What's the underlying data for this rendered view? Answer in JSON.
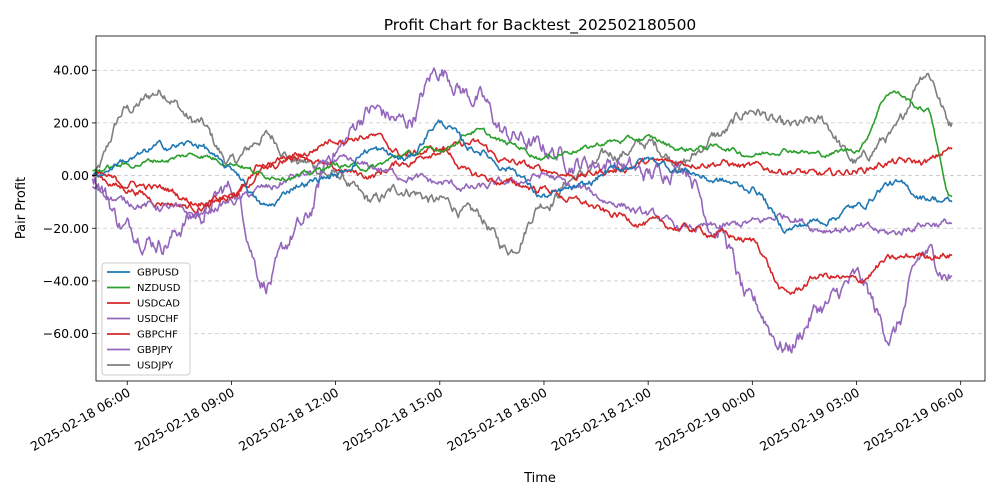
{
  "chart_data": {
    "type": "line",
    "title": "Profit Chart for Backtest_202502180500",
    "xlabel": "Time",
    "ylabel": "Pair Profit",
    "ylim": [
      -78,
      53
    ],
    "yticks": [
      -60,
      -40,
      -20,
      0,
      20,
      40
    ],
    "ytick_labels": [
      "−60.00",
      "−40.00",
      "−20.00",
      "0.00",
      "20.00",
      "40.00"
    ],
    "xlim": [
      "2025-02-18 05:06",
      "2025-02-19 06:42"
    ],
    "xtick_labels": [
      "2025-02-18 06:00",
      "2025-02-18 09:00",
      "2025-02-18 12:00",
      "2025-02-18 15:00",
      "2025-02-18 18:00",
      "2025-02-18 21:00",
      "2025-02-19 00:00",
      "2025-02-19 03:00",
      "2025-02-19 06:00"
    ],
    "x_data_hours": [
      0,
      1,
      2,
      3,
      4,
      5,
      6,
      7,
      8,
      9,
      10,
      11,
      12,
      13,
      14,
      15,
      16,
      17,
      18,
      19,
      20,
      21,
      22,
      23,
      24,
      25,
      26,
      27,
      28
    ],
    "x_data_labels": [
      "2025-02-18 05:00",
      "2025-02-18 06:00",
      "2025-02-18 07:00",
      "2025-02-18 08:00",
      "2025-02-18 09:00",
      "2025-02-18 10:00",
      "2025-02-18 11:00",
      "2025-02-18 12:00",
      "2025-02-18 13:00",
      "2025-02-18 14:00",
      "2025-02-18 15:00",
      "2025-02-18 16:00",
      "2025-02-18 17:00",
      "2025-02-18 18:00",
      "2025-02-18 19:00",
      "2025-02-18 20:00",
      "2025-02-18 21:00",
      "2025-02-18 22:00",
      "2025-02-18 23:00",
      "2025-02-19 00:00",
      "2025-02-19 01:00",
      "2025-02-19 02:00",
      "2025-02-19 03:00",
      "2025-02-19 04:00",
      "2025-02-19 05:00",
      "2025-02-19 06:00",
      "",
      "",
      ""
    ],
    "grid": "y-dashed",
    "legend_position": "lower-left",
    "series": [
      {
        "name": "GBPUSD",
        "color": "#1f77b4",
        "x": [
          "2025-02-18 05:00",
          "2025-02-18 06:00",
          "2025-02-18 07:00",
          "2025-02-18 08:00",
          "2025-02-18 09:00",
          "2025-02-18 10:00",
          "2025-02-18 11:00",
          "2025-02-18 12:00",
          "2025-02-18 13:00",
          "2025-02-18 14:00",
          "2025-02-18 15:00",
          "2025-02-18 16:00",
          "2025-02-18 17:00",
          "2025-02-18 18:00",
          "2025-02-18 19:00",
          "2025-02-18 20:00",
          "2025-02-18 21:00",
          "2025-02-18 22:00",
          "2025-02-18 23:00",
          "2025-02-19 00:00",
          "2025-02-19 01:00",
          "2025-02-19 02:00",
          "2025-02-19 03:00",
          "2025-02-19 04:00",
          "2025-02-19 05:00",
          "2025-02-19 05:45"
        ],
        "y": [
          0,
          6,
          11,
          12,
          2,
          -12,
          -3,
          0,
          10,
          6,
          20,
          10,
          3,
          -8,
          -5,
          2,
          6,
          2,
          -2,
          -5,
          -20,
          -17,
          -12,
          -3,
          -8,
          -10
        ]
      },
      {
        "name": "NZDUSD",
        "color": "#2ca02c",
        "x": [
          "2025-02-18 05:00",
          "2025-02-18 06:00",
          "2025-02-18 07:00",
          "2025-02-18 08:00",
          "2025-02-18 09:00",
          "2025-02-18 10:00",
          "2025-02-18 11:00",
          "2025-02-18 12:00",
          "2025-02-18 13:00",
          "2025-02-18 14:00",
          "2025-02-18 15:00",
          "2025-02-18 16:00",
          "2025-02-18 17:00",
          "2025-02-18 18:00",
          "2025-02-18 19:00",
          "2025-02-18 20:00",
          "2025-02-18 21:00",
          "2025-02-18 22:00",
          "2025-02-18 23:00",
          "2025-02-19 00:00",
          "2025-02-19 01:00",
          "2025-02-19 02:00",
          "2025-02-19 03:00",
          "2025-02-19 04:00",
          "2025-02-19 05:00",
          "2025-02-19 05:45"
        ],
        "y": [
          2,
          4,
          6,
          8,
          5,
          0,
          0,
          4,
          3,
          8,
          10,
          17,
          12,
          7,
          10,
          13,
          14,
          10,
          11,
          8,
          10,
          8,
          10,
          32,
          25,
          -8
        ]
      },
      {
        "name": "USDCAD",
        "color": "#d62728",
        "x": [
          "2025-02-18 05:00",
          "2025-02-18 06:00",
          "2025-02-18 07:00",
          "2025-02-18 08:00",
          "2025-02-18 09:00",
          "2025-02-18 10:00",
          "2025-02-18 11:00",
          "2025-02-18 12:00",
          "2025-02-18 13:00",
          "2025-02-18 14:00",
          "2025-02-18 15:00",
          "2025-02-18 16:00",
          "2025-02-18 17:00",
          "2025-02-18 18:00",
          "2025-02-18 19:00",
          "2025-02-18 20:00",
          "2025-02-18 21:00",
          "2025-02-18 22:00",
          "2025-02-18 23:00",
          "2025-02-19 00:00",
          "2025-02-19 01:00",
          "2025-02-19 02:00",
          "2025-02-19 03:00",
          "2025-02-19 04:00",
          "2025-02-19 05:00",
          "2025-02-19 05:45"
        ],
        "y": [
          0,
          -3,
          -5,
          -10,
          -8,
          2,
          8,
          14,
          15,
          8,
          10,
          0,
          -3,
          -5,
          -10,
          -15,
          -18,
          -20,
          -22,
          -25,
          -45,
          -38,
          -40,
          -32,
          -30,
          -30
        ]
      },
      {
        "name": "USDCHF",
        "color": "#9467bd",
        "x": [
          "2025-02-18 05:00",
          "2025-02-18 06:00",
          "2025-02-18 07:00",
          "2025-02-18 08:00",
          "2025-02-18 09:00",
          "2025-02-18 10:00",
          "2025-02-18 11:00",
          "2025-02-18 12:00",
          "2025-02-18 13:00",
          "2025-02-18 14:00",
          "2025-02-18 15:00",
          "2025-02-18 16:00",
          "2025-02-18 17:00",
          "2025-02-18 18:00",
          "2025-02-18 19:00",
          "2025-02-18 20:00",
          "2025-02-18 21:00",
          "2025-02-18 22:00",
          "2025-02-18 23:00",
          "2025-02-19 00:00",
          "2025-02-19 01:00",
          "2025-02-19 02:00",
          "2025-02-19 03:00",
          "2025-02-19 04:00",
          "2025-02-19 05:00",
          "2025-02-19 05:45"
        ],
        "y": [
          -5,
          -10,
          -12,
          -15,
          -10,
          -5,
          0,
          5,
          3,
          0,
          -3,
          -5,
          -3,
          0,
          -5,
          -10,
          -15,
          -20,
          -20,
          -18,
          -15,
          -20,
          -20,
          -22,
          -18,
          -18
        ]
      },
      {
        "name": "GBPCHF",
        "color": "#d62728",
        "x": [
          "2025-02-18 05:00",
          "2025-02-18 06:00",
          "2025-02-18 07:00",
          "2025-02-18 08:00",
          "2025-02-18 09:00",
          "2025-02-18 10:00",
          "2025-02-18 11:00",
          "2025-02-18 12:00",
          "2025-02-18 13:00",
          "2025-02-18 14:00",
          "2025-02-18 15:00",
          "2025-02-18 16:00",
          "2025-02-18 17:00",
          "2025-02-18 18:00",
          "2025-02-18 19:00",
          "2025-02-18 20:00",
          "2025-02-18 21:00",
          "2025-02-18 22:00",
          "2025-02-18 23:00",
          "2025-02-19 00:00",
          "2025-02-19 01:00",
          "2025-02-19 02:00",
          "2025-02-19 03:00",
          "2025-02-19 04:00",
          "2025-02-19 05:00",
          "2025-02-19 05:45"
        ],
        "y": [
          0,
          -5,
          -10,
          -12,
          -8,
          5,
          8,
          2,
          0,
          5,
          10,
          12,
          5,
          2,
          0,
          2,
          5,
          5,
          5,
          3,
          2,
          0,
          2,
          5,
          5,
          10
        ]
      },
      {
        "name": "GBPJPY",
        "color": "#9467bd",
        "x": [
          "2025-02-18 05:00",
          "2025-02-18 06:00",
          "2025-02-18 07:00",
          "2025-02-18 08:00",
          "2025-02-18 09:00",
          "2025-02-18 10:00",
          "2025-02-18 11:00",
          "2025-02-18 12:00",
          "2025-02-18 13:00",
          "2025-02-18 14:00",
          "2025-02-18 15:00",
          "2025-02-18 16:00",
          "2025-02-18 17:00",
          "2025-02-18 18:00",
          "2025-02-18 19:00",
          "2025-02-18 20:00",
          "2025-02-18 21:00",
          "2025-02-18 22:00",
          "2025-02-18 23:00",
          "2025-02-19 00:00",
          "2025-02-19 01:00",
          "2025-02-19 02:00",
          "2025-02-19 03:00",
          "2025-02-19 04:00",
          "2025-02-19 05:00",
          "2025-02-19 05:45"
        ],
        "y": [
          0,
          -20,
          -25,
          -15,
          -5,
          -40,
          -20,
          10,
          25,
          20,
          40,
          30,
          15,
          10,
          5,
          5,
          0,
          5,
          -20,
          -50,
          -65,
          -50,
          -40,
          -60,
          -30,
          -38
        ]
      },
      {
        "name": "USDJPY",
        "color": "#7f7f7f",
        "x": [
          "2025-02-18 05:00",
          "2025-02-18 06:00",
          "2025-02-18 07:00",
          "2025-02-18 08:00",
          "2025-02-18 09:00",
          "2025-02-18 10:00",
          "2025-02-18 11:00",
          "2025-02-18 12:00",
          "2025-02-18 13:00",
          "2025-02-18 14:00",
          "2025-02-18 15:00",
          "2025-02-18 16:00",
          "2025-02-18 17:00",
          "2025-02-18 18:00",
          "2025-02-18 19:00",
          "2025-02-18 20:00",
          "2025-02-18 21:00",
          "2025-02-18 22:00",
          "2025-02-18 23:00",
          "2025-02-19 00:00",
          "2025-02-19 01:00",
          "2025-02-19 02:00",
          "2025-02-19 03:00",
          "2025-02-19 04:00",
          "2025-02-19 05:00",
          "2025-02-19 05:45"
        ],
        "y": [
          0,
          25,
          32,
          20,
          5,
          15,
          5,
          0,
          -10,
          -5,
          -10,
          -15,
          -28,
          -10,
          0,
          8,
          12,
          5,
          15,
          25,
          18,
          20,
          5,
          15,
          40,
          20
        ]
      }
    ]
  }
}
